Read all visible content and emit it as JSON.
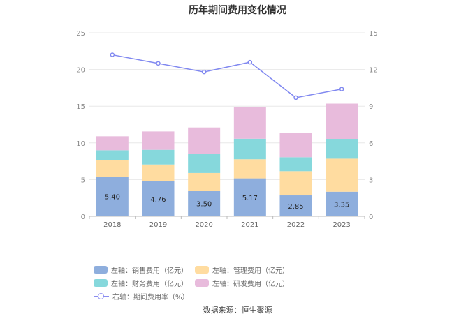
{
  "title": "历年期间费用变化情况",
  "source": "数据来源：恒生聚源",
  "chart_data": {
    "type": "bar",
    "stacked": true,
    "categories": [
      "2018",
      "2019",
      "2020",
      "2021",
      "2022",
      "2023"
    ],
    "left_axis": {
      "min": 0,
      "max": 25,
      "ticks": [
        "0",
        "5",
        "10",
        "15",
        "20",
        "25"
      ]
    },
    "right_axis": {
      "min": 0,
      "max": 15,
      "ticks": [
        "0",
        "3",
        "6",
        "9",
        "12",
        "15"
      ]
    },
    "series": [
      {
        "name": "左轴：销售费用（亿元）",
        "color": "#8eaedd",
        "values": [
          5.4,
          4.76,
          3.5,
          5.17,
          2.85,
          3.35
        ],
        "labels": [
          "5.40",
          "4.76",
          "3.50",
          "5.17",
          "2.85",
          "3.35"
        ]
      },
      {
        "name": "左轴：管理费用（亿元）",
        "color": "#ffdca0",
        "values": [
          2.3,
          2.3,
          2.4,
          2.6,
          3.3,
          4.5
        ]
      },
      {
        "name": "左轴：财务费用（亿元）",
        "color": "#86d8dc",
        "values": [
          1.3,
          2.0,
          2.6,
          2.8,
          1.9,
          2.7
        ]
      },
      {
        "name": "左轴：研发费用（亿元）",
        "color": "#e8bbdc",
        "values": [
          1.9,
          2.5,
          3.6,
          4.3,
          3.3,
          4.8
        ]
      }
    ],
    "line_series": {
      "name": "右轴：期间费用率（%）",
      "color": "#8088f0",
      "values": [
        13.2,
        12.5,
        11.8,
        12.6,
        9.7,
        10.4
      ]
    },
    "grid": true,
    "legend_position": "bottom"
  }
}
